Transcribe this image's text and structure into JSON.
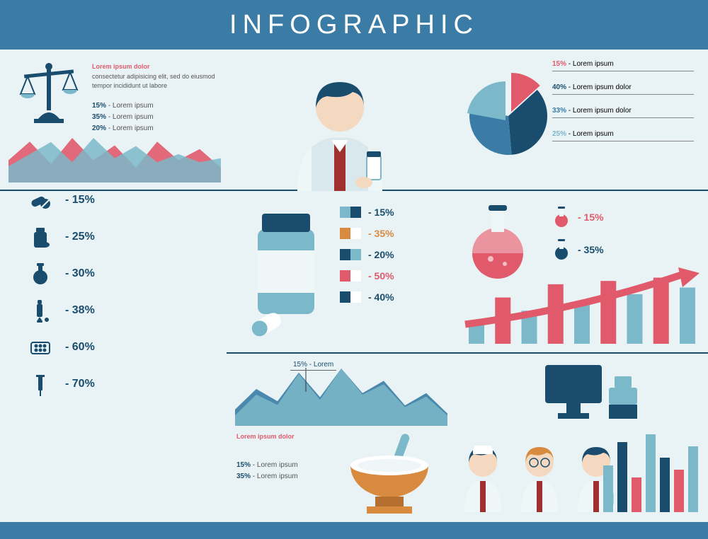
{
  "title": "INFOGRAPHIC",
  "colors": {
    "dark": "#1a4d6d",
    "mid": "#3a7ca5",
    "light": "#7bb8c9",
    "red": "#e05a6b",
    "orange": "#d88a3f",
    "bg": "#e9f3f5",
    "white": "#ffffff"
  },
  "r1c1": {
    "heading": "Lorem ipsum dolor",
    "body": "consectetur adipisicing elit, sed do\neiusmod tempor incididunt ut labore",
    "stats": [
      {
        "v": "15%",
        "c": "#1a4d6d"
      },
      {
        "v": "35%",
        "c": "#1a4d6d"
      },
      {
        "v": "20%",
        "c": "#1a4d6d"
      }
    ],
    "stat_suffix": " - Lorem ipsum",
    "area": {
      "red": [
        30,
        55,
        25,
        60,
        30,
        50,
        20,
        55,
        30,
        45,
        20
      ],
      "blue": [
        20,
        35,
        50,
        25,
        55,
        30,
        45,
        25,
        35,
        25,
        30
      ]
    }
  },
  "pie": {
    "slices": [
      {
        "pct": 15,
        "label": "Lorem ipsum",
        "color": "#e05a6b"
      },
      {
        "pct": 40,
        "label": "Lorem ipsum dolor",
        "color": "#1a4d6d"
      },
      {
        "pct": 33,
        "label": "Lorem ipsum dolor",
        "color": "#3a7ca5"
      },
      {
        "pct": 25,
        "label": "Lorem ipsum",
        "color": "#7bb8c9"
      }
    ],
    "radius": 55
  },
  "pills": [
    {
      "v": "- 15%",
      "c1": "#7bb8c9",
      "c2": "#1a4d6d",
      "tc": "#1a4d6d"
    },
    {
      "v": "- 35%",
      "c1": "#d88a3f",
      "c2": "#ffffff",
      "tc": "#d88a3f"
    },
    {
      "v": "- 20%",
      "c1": "#1a4d6d",
      "c2": "#7bb8c9",
      "tc": "#1a4d6d"
    },
    {
      "v": "- 50%",
      "c1": "#e05a6b",
      "c2": "#ffffff",
      "tc": "#e05a6b"
    },
    {
      "v": "- 40%",
      "c1": "#1a4d6d",
      "c2": "#ffffff",
      "tc": "#1a4d6d"
    }
  ],
  "iconlist": [
    {
      "icon": "pills",
      "v": "- 15%"
    },
    {
      "icon": "bottle",
      "v": "- 25%"
    },
    {
      "icon": "flask",
      "v": "- 30%"
    },
    {
      "icon": "dropper",
      "v": "- 38%"
    },
    {
      "icon": "blister",
      "v": "- 60%"
    },
    {
      "icon": "syringe",
      "v": "- 70%"
    }
  ],
  "flasks": [
    {
      "v": "- 15%",
      "c": "#e05a6b",
      "tc": "#e05a6b"
    },
    {
      "v": "- 35%",
      "c": "#1a4d6d",
      "tc": "#1a4d6d"
    }
  ],
  "bars": {
    "values": [
      35,
      70,
      50,
      90,
      60,
      95,
      75,
      100,
      85
    ],
    "colors": [
      "#7bb8c9",
      "#e05a6b",
      "#7bb8c9",
      "#e05a6b",
      "#7bb8c9",
      "#e05a6b",
      "#7bb8c9",
      "#e05a6b",
      "#7bb8c9"
    ],
    "arrow_color": "#e05a6b"
  },
  "r3c1": {
    "caption": "15% - Lorem",
    "heading": "Lorem ipsum dolor",
    "stats": [
      {
        "v": "15%"
      },
      {
        "v": "35%"
      }
    ],
    "stat_suffix": " - Lorem ipsum",
    "area": {
      "dark": [
        20,
        45,
        30,
        65,
        35,
        70,
        40,
        55,
        25,
        40,
        15
      ],
      "light": [
        10,
        30,
        20,
        50,
        25,
        55,
        30,
        40,
        18,
        28,
        10
      ]
    }
  },
  "minibars": {
    "values": [
      60,
      90,
      45,
      100,
      70,
      55,
      85
    ],
    "colors": [
      "#7bb8c9",
      "#1a4d6d",
      "#e05a6b",
      "#7bb8c9",
      "#1a4d6d",
      "#e05a6b",
      "#7bb8c9"
    ]
  }
}
